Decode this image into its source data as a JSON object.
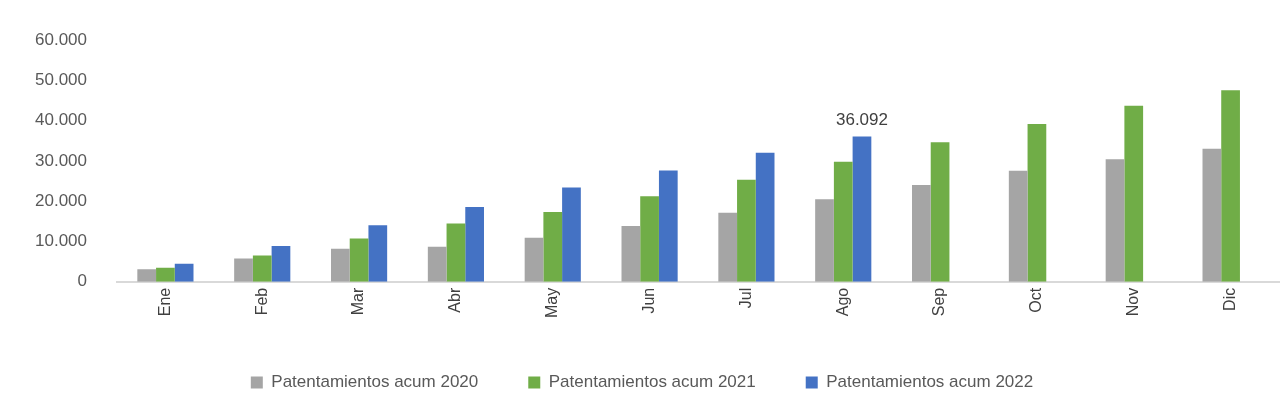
{
  "chart_data": {
    "type": "bar",
    "categories": [
      "Ene",
      "Feb",
      "Mar",
      "Abr",
      "May",
      "Jun",
      "Jul",
      "Ago",
      "Sep",
      "Oct",
      "Nov",
      "Dic"
    ],
    "series": [
      {
        "name": "Patentamientos acum 2020",
        "color": "#a5a5a5",
        "values": [
          3140,
          5770,
          8180,
          8690,
          10950,
          13870,
          17150,
          20510,
          24010,
          27590,
          30440,
          33070
        ]
      },
      {
        "name": "Patentamientos acum 2021",
        "color": "#70ad47",
        "values": [
          3500,
          6500,
          10730,
          14450,
          17300,
          21240,
          25330,
          29780,
          34670,
          39200,
          43720,
          47590
        ]
      },
      {
        "name": "Patentamientos acum 2022",
        "color": "#4472c4",
        "values": [
          4450,
          8900,
          14010,
          18600,
          23430,
          27660,
          32040,
          36092,
          null,
          null,
          null,
          null
        ],
        "value_labels": [
          null,
          null,
          null,
          null,
          null,
          null,
          null,
          "36.092",
          null,
          null,
          null,
          null
        ]
      }
    ],
    "ylim": [
      0,
      60000
    ],
    "yticks": [
      {
        "value": 0,
        "label": "0"
      },
      {
        "value": 10000,
        "label": "10.000"
      },
      {
        "value": 20000,
        "label": "20.000"
      },
      {
        "value": 30000,
        "label": "30.000"
      },
      {
        "value": 40000,
        "label": "40.000"
      },
      {
        "value": 50000,
        "label": "50.000"
      },
      {
        "value": 60000,
        "label": "60.000"
      }
    ],
    "grid": false,
    "legend": "bottom"
  }
}
